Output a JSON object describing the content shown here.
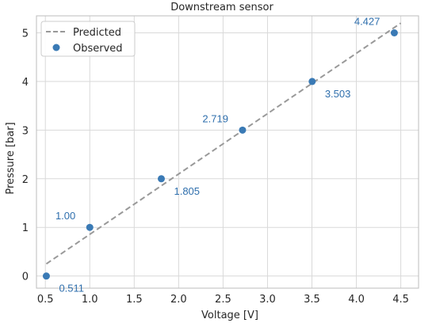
{
  "chart_data": {
    "type": "scatter",
    "title": "Downstream sensor",
    "xlabel": "Voltage [V]",
    "ylabel": "Pressure [bar]",
    "xlim": [
      0.4,
      4.7
    ],
    "ylim": [
      -0.25,
      5.35
    ],
    "xticks": [
      0.5,
      1.0,
      1.5,
      2.0,
      2.5,
      3.0,
      3.5,
      4.0,
      4.5
    ],
    "xtick_labels": [
      "0.5",
      "1.0",
      "1.5",
      "2.0",
      "2.5",
      "3.0",
      "3.5",
      "4.0",
      "4.5"
    ],
    "yticks": [
      0,
      1,
      2,
      3,
      4,
      5
    ],
    "ytick_labels": [
      "0",
      "1",
      "2",
      "3",
      "4",
      "5"
    ],
    "grid": true,
    "legend_position": "top-left",
    "series": [
      {
        "name": "Predicted",
        "kind": "line",
        "style": "dashed",
        "color": "#999999",
        "x": [
          0.511,
          4.5
        ],
        "y": [
          0.25,
          5.2
        ]
      },
      {
        "name": "Observed",
        "kind": "scatter",
        "color": "#3a7ab5",
        "x": [
          0.511,
          1.0,
          1.805,
          2.719,
          3.503,
          4.427
        ],
        "y": [
          0,
          1,
          2,
          3,
          4,
          5
        ]
      }
    ],
    "annotations": [
      {
        "text": "0.511",
        "x": 0.511,
        "y": 0,
        "pos": "right-below"
      },
      {
        "text": "1.00",
        "x": 1.0,
        "y": 1,
        "pos": "left-above"
      },
      {
        "text": "1.805",
        "x": 1.805,
        "y": 2,
        "pos": "right-below"
      },
      {
        "text": "2.719",
        "x": 2.719,
        "y": 3,
        "pos": "left-above"
      },
      {
        "text": "3.503",
        "x": 3.503,
        "y": 4,
        "pos": "right-below"
      },
      {
        "text": "4.427",
        "x": 4.427,
        "y": 5,
        "pos": "left-above"
      }
    ],
    "annotation_color": "#2f6fad"
  }
}
